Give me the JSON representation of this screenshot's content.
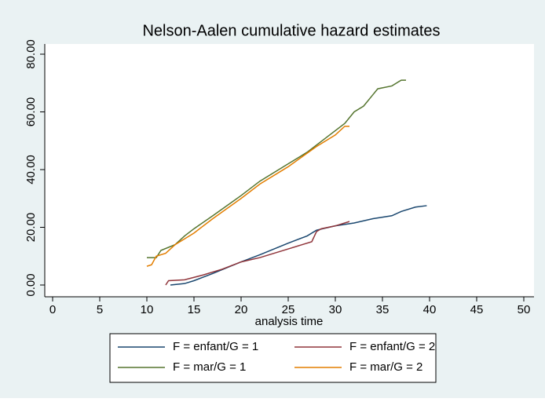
{
  "chart_data": {
    "type": "line",
    "title": "Nelson-Aalen cumulative hazard estimates",
    "x_label": "analysis time",
    "xlim": [
      0,
      50
    ],
    "xticks": [
      0,
      5,
      10,
      15,
      20,
      25,
      30,
      35,
      40,
      45,
      50
    ],
    "ylim": [
      0,
      80
    ],
    "yticks": [
      {
        "value": 0,
        "label": "0.00"
      },
      {
        "value": 20,
        "label": "20.00"
      },
      {
        "value": 40,
        "label": "40.00"
      },
      {
        "value": 60,
        "label": "60.00"
      },
      {
        "value": 80,
        "label": "80.00"
      }
    ],
    "series": [
      {
        "name": "F = enfant/G = 1",
        "color": "#1a476f",
        "x": [
          12.5,
          14,
          15,
          17,
          20,
          22,
          25,
          27,
          28,
          30,
          32,
          34,
          36,
          37,
          38.5,
          39.7
        ],
        "values": [
          0,
          0.5,
          1.5,
          4,
          8,
          10.5,
          14.5,
          17,
          19,
          20.5,
          21.5,
          23,
          24,
          25.5,
          27,
          27.5
        ]
      },
      {
        "name": "F = enfant/G = 2",
        "color": "#90353b",
        "x": [
          12,
          12.3,
          14,
          16,
          18,
          20,
          22,
          25,
          27.5,
          28,
          28.5,
          30,
          31.5
        ],
        "values": [
          0,
          1.5,
          1.8,
          3.5,
          5.5,
          8,
          9.5,
          12.5,
          15,
          18.5,
          19.5,
          20.5,
          22
        ]
      },
      {
        "name": "F = mar/G = 1",
        "color": "#55752f",
        "x": [
          10,
          11,
          11.5,
          13,
          14,
          15,
          17,
          20,
          22,
          25,
          27,
          29,
          31,
          32,
          33,
          34,
          34.5,
          36,
          37,
          37.5
        ],
        "values": [
          9.5,
          9.5,
          12,
          14,
          17,
          19.5,
          24,
          31,
          36,
          42,
          46,
          51,
          56,
          60,
          62,
          66,
          68,
          69,
          71,
          71
        ]
      },
      {
        "name": "F = mar/G = 2",
        "color": "#e37e00",
        "x": [
          10,
          10.5,
          11,
          12,
          13,
          15,
          17,
          20,
          22,
          25,
          28,
          30,
          31,
          31.5
        ],
        "values": [
          6.5,
          7,
          10,
          11,
          14,
          18,
          23,
          30,
          35,
          41,
          48,
          52,
          55,
          55
        ]
      }
    ]
  }
}
